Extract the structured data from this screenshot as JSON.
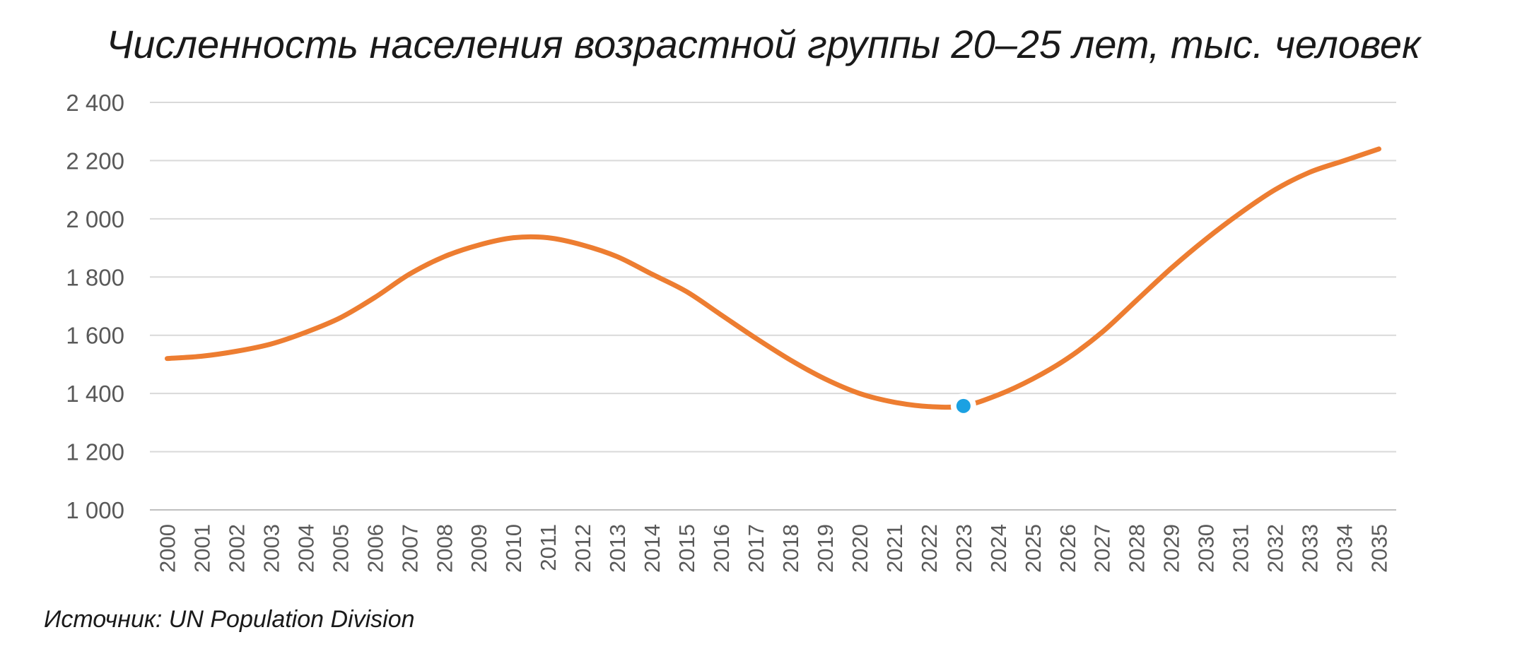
{
  "chart_data": {
    "type": "line",
    "title": "Численность населения возрастной группы 20–25 лет, тыс. человек",
    "source": "Источник: UN Population Division",
    "xlabel": "",
    "ylabel": "",
    "ylim": [
      1000,
      2400
    ],
    "yticks": [
      "1 000",
      "1 200",
      "1 400",
      "1 600",
      "1 800",
      "2 000",
      "2 200",
      "2 400"
    ],
    "ytick_values": [
      1000,
      1200,
      1400,
      1600,
      1800,
      2000,
      2200,
      2400
    ],
    "grid": true,
    "legend": "none",
    "categories": [
      "2000",
      "2001",
      "2002",
      "2003",
      "2004",
      "2005",
      "2006",
      "2007",
      "2008",
      "2009",
      "2010",
      "2011",
      "2012",
      "2013",
      "2014",
      "2015",
      "2016",
      "2017",
      "2018",
      "2019",
      "2020",
      "2021",
      "2022",
      "2023",
      "2024",
      "2025",
      "2026",
      "2027",
      "2028",
      "2029",
      "2030",
      "2031",
      "2032",
      "2033",
      "2034",
      "2035"
    ],
    "series": [
      {
        "values": [
          1520,
          1528,
          1545,
          1570,
          1610,
          1660,
          1730,
          1810,
          1870,
          1910,
          1935,
          1935,
          1910,
          1870,
          1810,
          1750,
          1670,
          1590,
          1515,
          1450,
          1400,
          1370,
          1355,
          1357,
          1395,
          1450,
          1520,
          1610,
          1720,
          1830,
          1930,
          2020,
          2100,
          2160,
          2200,
          2240
        ]
      }
    ],
    "highlight": {
      "x": "2023",
      "value": 1357
    },
    "colors": {
      "line": "#ED7D31",
      "highlight": "#1BA1E2",
      "grid": "#D9D9D9",
      "tick_text": "#595959"
    }
  }
}
